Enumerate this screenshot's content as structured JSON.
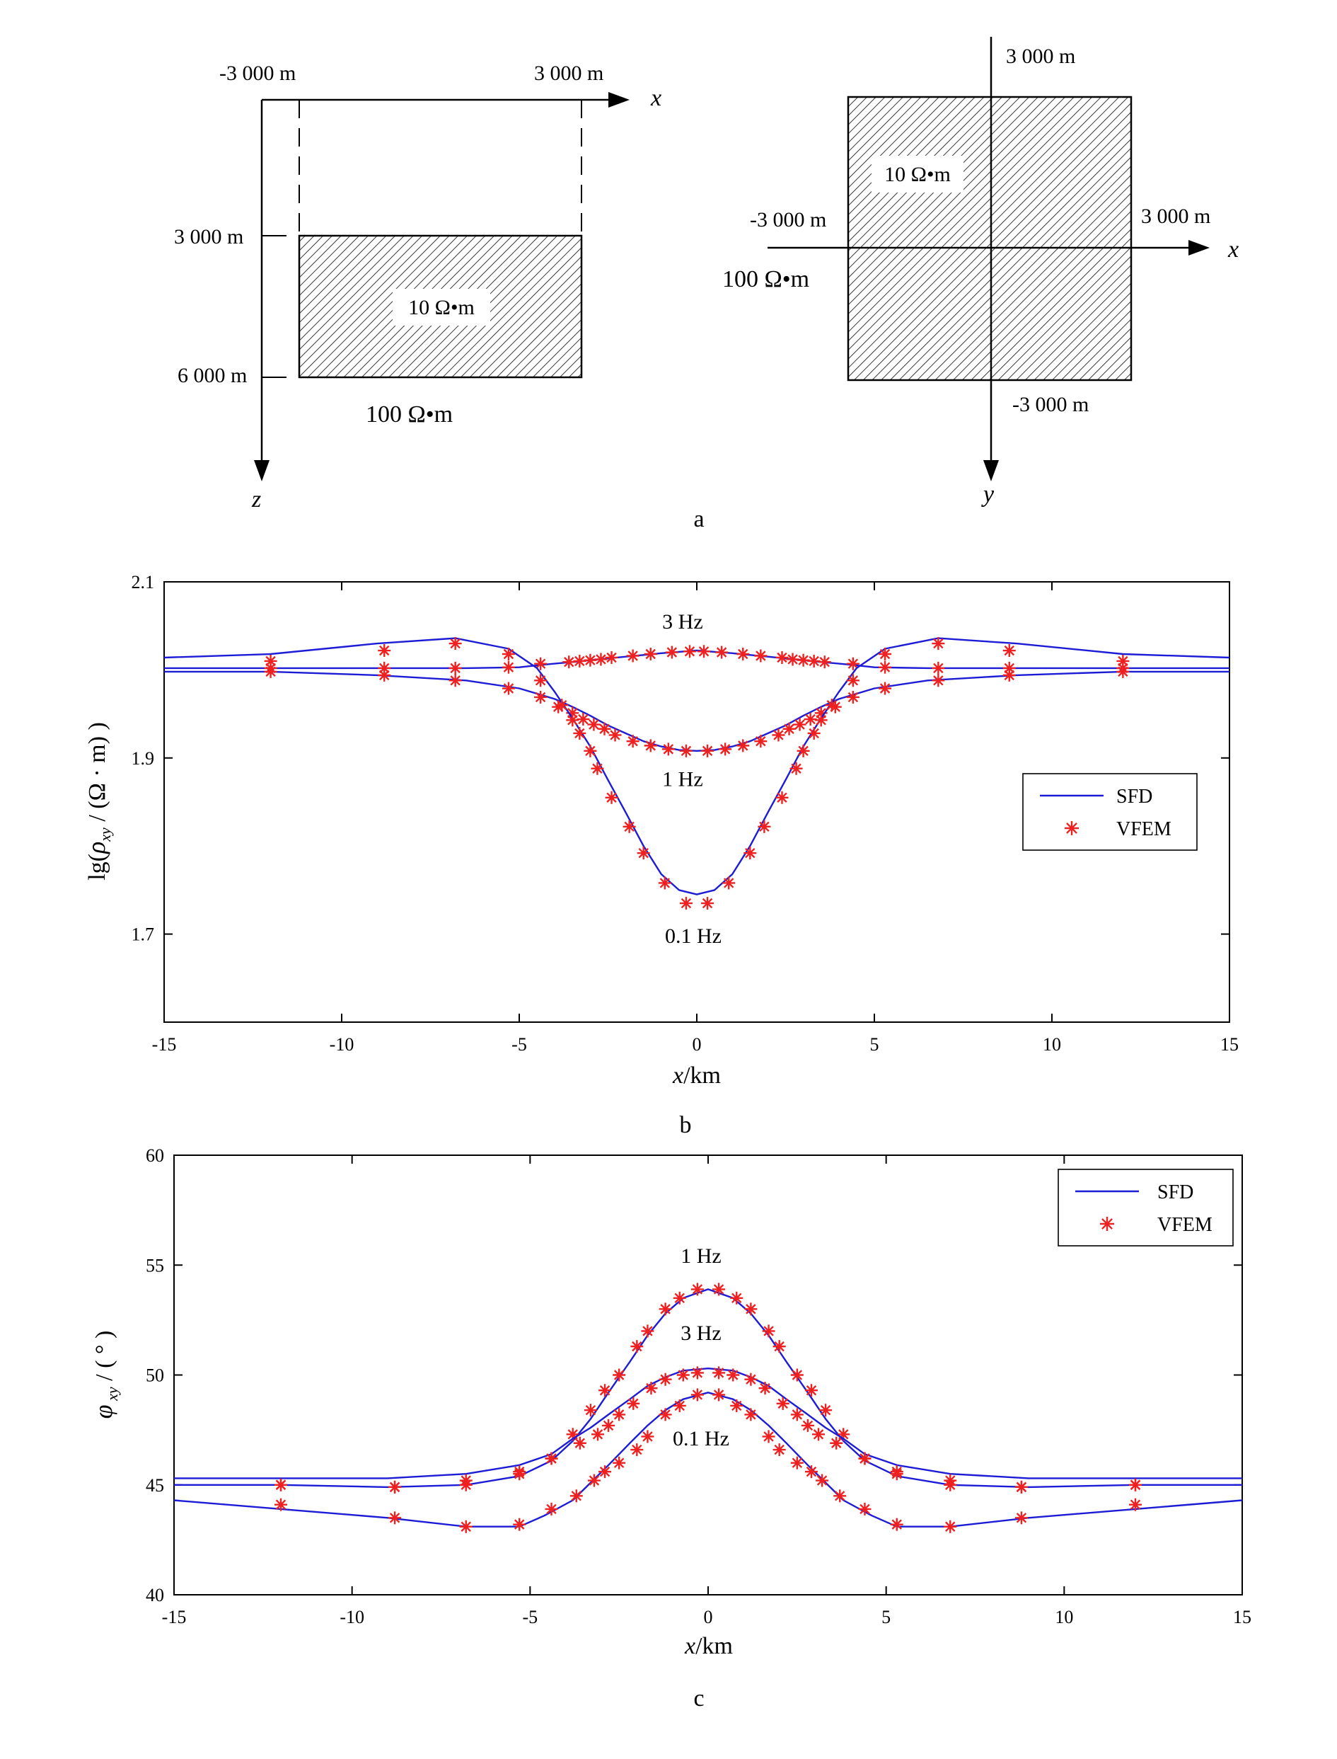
{
  "colors": {
    "sfd": "#1c1cd6",
    "vfem": "#ee2020",
    "axis": "#000000",
    "hatch": "#333333"
  },
  "figure_a": {
    "label": "a",
    "section": {
      "x_left_label": "-3 000 m",
      "x_right_label": "3 000 m",
      "axis_x": "x",
      "axis_z": "z",
      "z_top_label": "3 000 m",
      "z_bottom_label": "6 000 m",
      "anomaly_label": "10 Ω•m",
      "background_label": "100 Ω•m"
    },
    "plan": {
      "y_top_label": "3 000 m",
      "y_bottom_label": "-3 000 m",
      "x_left_label": "-3 000 m",
      "x_right_label": "3 000 m",
      "axis_x": "x",
      "axis_y": "y",
      "anomaly_label": "10 Ω•m",
      "background_label": "100 Ω•m"
    }
  },
  "chart_data": [
    {
      "id": "b",
      "type": "line",
      "caption": "b",
      "xlabel": "x/km",
      "ylabel": "lg(ρxy/(Ω·m))",
      "xlim": [
        -15,
        15
      ],
      "ylim": [
        1.6,
        2.1
      ],
      "xticks": [
        -15,
        -10,
        -5,
        0,
        5,
        10,
        15
      ],
      "yticks": [
        1.7,
        1.9,
        2.1
      ],
      "xtick_labels": [
        "-15",
        "-10",
        "-5",
        "0",
        "5",
        "10",
        "15"
      ],
      "ytick_labels": [
        "1.7",
        "1.9",
        "2.1"
      ],
      "legend": {
        "position": "right",
        "entries": [
          "SFD",
          "VFEM"
        ]
      },
      "annotations": [
        {
          "text": "3 Hz",
          "x": -0.4,
          "y": 2.047
        },
        {
          "text": "1 Hz",
          "x": -0.4,
          "y": 1.868
        },
        {
          "text": "0.1 Hz",
          "x": -0.1,
          "y": 1.69
        }
      ],
      "series": [
        {
          "name": "3 Hz",
          "kind": "SFD",
          "x": [
            -15,
            -12,
            -9,
            -6.5,
            -5,
            -4.3,
            -3.5,
            -3,
            -2.5,
            -2,
            -1.5,
            -1,
            0,
            1,
            1.5,
            2,
            2.5,
            3,
            3.5,
            4.3,
            5,
            6.5,
            9,
            12,
            15
          ],
          "y": [
            2.002,
            2.002,
            2.002,
            2.002,
            2.003,
            2.006,
            2.009,
            2.011,
            2.013,
            2.015,
            2.017,
            2.019,
            2.022,
            2.019,
            2.017,
            2.015,
            2.013,
            2.011,
            2.009,
            2.006,
            2.003,
            2.002,
            2.002,
            2.002,
            2.002
          ]
        },
        {
          "name": "3 Hz",
          "kind": "VFEM",
          "x": [
            -12,
            -8.8,
            -6.8,
            -5.3,
            -4.4,
            -3.6,
            -3.3,
            -3,
            -2.7,
            -2.4,
            -1.8,
            -1.3,
            -0.7,
            -0.2,
            0.2,
            0.7,
            1.3,
            1.8,
            2.4,
            2.7,
            3,
            3.3,
            3.6,
            4.4,
            5.3,
            6.8,
            8.8,
            12
          ],
          "y": [
            2.002,
            2.002,
            2.002,
            2.003,
            2.007,
            2.009,
            2.01,
            2.011,
            2.012,
            2.014,
            2.016,
            2.018,
            2.02,
            2.021,
            2.021,
            2.02,
            2.018,
            2.016,
            2.014,
            2.012,
            2.011,
            2.01,
            2.009,
            2.007,
            2.003,
            2.002,
            2.002,
            2.002
          ]
        },
        {
          "name": "1 Hz",
          "kind": "SFD",
          "x": [
            -15,
            -12,
            -9,
            -6.5,
            -5,
            -4,
            -3.5,
            -3,
            -2.5,
            -2,
            -1.5,
            -1,
            -0.5,
            0,
            0.5,
            1,
            1.5,
            2,
            2.5,
            3,
            3.5,
            4,
            5,
            6.5,
            9,
            12,
            15
          ],
          "y": [
            1.998,
            1.998,
            1.994,
            1.988,
            1.979,
            1.967,
            1.958,
            1.948,
            1.937,
            1.928,
            1.919,
            1.913,
            1.909,
            1.908,
            1.909,
            1.913,
            1.919,
            1.928,
            1.937,
            1.948,
            1.958,
            1.967,
            1.979,
            1.988,
            1.994,
            1.998,
            1.998
          ]
        },
        {
          "name": "1 Hz",
          "kind": "VFEM",
          "x": [
            -12,
            -8.8,
            -6.8,
            -5.3,
            -4.4,
            -3.9,
            -3.5,
            -3.2,
            -2.9,
            -2.6,
            -2.3,
            -1.8,
            -1.3,
            -0.8,
            -0.3,
            0.3,
            0.8,
            1.3,
            1.8,
            2.3,
            2.6,
            2.9,
            3.2,
            3.5,
            3.9,
            4.4,
            5.3,
            6.8,
            8.8,
            12
          ],
          "y": [
            1.998,
            1.994,
            1.988,
            1.979,
            1.969,
            1.958,
            1.951,
            1.944,
            1.938,
            1.933,
            1.926,
            1.919,
            1.914,
            1.91,
            1.908,
            1.908,
            1.91,
            1.914,
            1.919,
            1.926,
            1.933,
            1.938,
            1.944,
            1.951,
            1.958,
            1.969,
            1.979,
            1.988,
            1.994,
            1.998
          ]
        },
        {
          "name": "0.1 Hz",
          "kind": "SFD",
          "x": [
            -15,
            -12,
            -9,
            -6.8,
            -5.3,
            -4.5,
            -4,
            -3.5,
            -3,
            -2.5,
            -2,
            -1.5,
            -1,
            -0.5,
            0,
            0.5,
            1,
            1.5,
            2,
            2.5,
            3,
            3.5,
            4,
            4.5,
            5.3,
            6.8,
            9,
            12,
            15
          ],
          "y": [
            2.014,
            2.018,
            2.03,
            2.036,
            2.024,
            2.002,
            1.975,
            1.945,
            1.913,
            1.875,
            1.838,
            1.8,
            1.768,
            1.75,
            1.745,
            1.75,
            1.768,
            1.8,
            1.838,
            1.875,
            1.913,
            1.945,
            1.975,
            2.002,
            2.024,
            2.036,
            2.03,
            2.018,
            2.014
          ]
        },
        {
          "name": "0.1 Hz",
          "kind": "VFEM",
          "x": [
            -12,
            -8.8,
            -6.8,
            -5.3,
            -4.4,
            -3.8,
            -3.5,
            -3.3,
            -3,
            -2.8,
            -2.4,
            -1.9,
            -1.5,
            -0.9,
            -0.3,
            0.3,
            0.9,
            1.5,
            1.9,
            2.4,
            2.8,
            3,
            3.3,
            3.5,
            3.8,
            4.4,
            5.3,
            6.8,
            8.8,
            12
          ],
          "y": [
            2.01,
            2.022,
            2.03,
            2.018,
            1.988,
            1.96,
            1.943,
            1.928,
            1.908,
            1.888,
            1.855,
            1.822,
            1.792,
            1.758,
            1.735,
            1.735,
            1.758,
            1.792,
            1.822,
            1.855,
            1.888,
            1.908,
            1.928,
            1.943,
            1.96,
            1.988,
            2.018,
            2.03,
            2.022,
            2.01
          ]
        }
      ]
    },
    {
      "id": "c",
      "type": "line",
      "caption": "c",
      "xlabel": "x/km",
      "ylabel": "φxy/(°)",
      "xlim": [
        -15,
        15
      ],
      "ylim": [
        40,
        60
      ],
      "xticks": [
        -15,
        -10,
        -5,
        0,
        5,
        10,
        15
      ],
      "yticks": [
        40,
        45,
        50,
        55,
        60
      ],
      "xtick_labels": [
        "-15",
        "-10",
        "-5",
        "0",
        "5",
        "10",
        "15"
      ],
      "ytick_labels": [
        "40",
        "45",
        "50",
        "55",
        "60"
      ],
      "legend": {
        "position": "top-right",
        "entries": [
          "SFD",
          "VFEM"
        ]
      },
      "annotations": [
        {
          "text": "1 Hz",
          "x": -0.2,
          "y": 55.1
        },
        {
          "text": "3 Hz",
          "x": -0.2,
          "y": 51.6
        },
        {
          "text": "0.1 Hz",
          "x": -0.2,
          "y": 46.8
        }
      ],
      "series": [
        {
          "name": "1 Hz",
          "kind": "SFD",
          "x": [
            -15,
            -12,
            -9,
            -6.8,
            -5.3,
            -4.4,
            -3.8,
            -3.3,
            -2.8,
            -2.2,
            -1.7,
            -1.2,
            -0.7,
            0,
            0.7,
            1.2,
            1.7,
            2.2,
            2.8,
            3.3,
            3.8,
            4.4,
            5.3,
            6.8,
            9,
            12,
            15
          ],
          "y": [
            45.0,
            45.0,
            44.9,
            45.0,
            45.4,
            46.1,
            47.0,
            48.0,
            49.2,
            50.6,
            51.8,
            52.8,
            53.5,
            53.9,
            53.5,
            52.8,
            51.8,
            50.6,
            49.2,
            48.0,
            47.0,
            46.1,
            45.4,
            45.0,
            44.9,
            45.0,
            45.0
          ]
        },
        {
          "name": "1 Hz",
          "kind": "VFEM",
          "x": [
            -12,
            -8.8,
            -6.8,
            -5.3,
            -4.4,
            -3.8,
            -3.3,
            -2.9,
            -2.5,
            -2,
            -1.7,
            -1.2,
            -0.8,
            -0.3,
            0.3,
            0.8,
            1.2,
            1.7,
            2,
            2.5,
            2.9,
            3.3,
            3.8,
            4.4,
            5.3,
            6.8,
            8.8,
            12
          ],
          "y": [
            45.0,
            44.9,
            45.0,
            45.5,
            46.2,
            47.3,
            48.4,
            49.3,
            50.0,
            51.3,
            52.0,
            53.0,
            53.5,
            53.9,
            53.9,
            53.5,
            53.0,
            52.0,
            51.3,
            50.0,
            49.3,
            48.4,
            47.3,
            46.2,
            45.5,
            45.0,
            44.9,
            45.0
          ]
        },
        {
          "name": "3 Hz",
          "kind": "SFD",
          "x": [
            -15,
            -12,
            -9,
            -6.8,
            -5.3,
            -4.4,
            -3.8,
            -3.3,
            -2.8,
            -2.2,
            -1.7,
            -1.2,
            -0.7,
            0,
            0.7,
            1.2,
            1.7,
            2.2,
            2.8,
            3.3,
            3.8,
            4.4,
            5.3,
            6.8,
            9,
            12,
            15
          ],
          "y": [
            45.3,
            45.3,
            45.3,
            45.5,
            45.9,
            46.4,
            47.1,
            47.6,
            48.2,
            48.9,
            49.5,
            49.9,
            50.2,
            50.3,
            50.2,
            49.9,
            49.5,
            48.9,
            48.2,
            47.6,
            47.1,
            46.4,
            45.9,
            45.5,
            45.3,
            45.3,
            45.3
          ]
        },
        {
          "name": "3 Hz",
          "kind": "VFEM",
          "x": [
            -12,
            -8.8,
            -6.8,
            -5.3,
            -4.4,
            -3.6,
            -3.1,
            -2.8,
            -2.5,
            -2.1,
            -1.6,
            -1.2,
            -0.7,
            -0.3,
            0.3,
            0.7,
            1.2,
            1.6,
            2.1,
            2.5,
            2.8,
            3.1,
            3.6,
            4.4,
            5.3,
            6.8,
            8.8,
            12
          ],
          "y": [
            45.0,
            44.9,
            45.2,
            45.6,
            46.2,
            46.9,
            47.3,
            47.7,
            48.2,
            48.7,
            49.4,
            49.8,
            50.0,
            50.1,
            50.1,
            50.0,
            49.8,
            49.4,
            48.7,
            48.2,
            47.7,
            47.3,
            46.9,
            46.2,
            45.6,
            45.2,
            44.9,
            45.0
          ]
        },
        {
          "name": "0.1 Hz",
          "kind": "SFD",
          "x": [
            -15,
            -12,
            -9,
            -6.8,
            -5.3,
            -4.6,
            -3.8,
            -3.3,
            -2.8,
            -2.2,
            -1.7,
            -1.2,
            -0.7,
            0,
            0.7,
            1.2,
            1.7,
            2.2,
            2.8,
            3.3,
            3.8,
            4.6,
            5.3,
            6.8,
            9,
            12,
            15
          ],
          "y": [
            44.3,
            43.9,
            43.5,
            43.1,
            43.1,
            43.6,
            44.3,
            45.1,
            45.9,
            46.9,
            47.7,
            48.4,
            48.9,
            49.2,
            48.9,
            48.4,
            47.7,
            46.9,
            45.9,
            45.1,
            44.3,
            43.6,
            43.1,
            43.1,
            43.5,
            43.9,
            44.3
          ]
        },
        {
          "name": "0.1 Hz",
          "kind": "VFEM",
          "x": [
            -12,
            -8.8,
            -6.8,
            -5.3,
            -4.4,
            -3.7,
            -3.2,
            -2.9,
            -2.5,
            -2,
            -1.7,
            -1.2,
            -0.8,
            -0.3,
            0.3,
            0.8,
            1.2,
            1.7,
            2,
            2.5,
            2.9,
            3.2,
            3.7,
            4.4,
            5.3,
            6.8,
            8.8,
            12
          ],
          "y": [
            44.1,
            43.5,
            43.1,
            43.2,
            43.9,
            44.5,
            45.2,
            45.6,
            46.0,
            46.6,
            47.2,
            48.2,
            48.6,
            49.1,
            49.1,
            48.6,
            48.2,
            47.2,
            46.6,
            46.0,
            45.6,
            45.2,
            44.5,
            43.9,
            43.2,
            43.1,
            43.5,
            44.1
          ]
        }
      ]
    }
  ]
}
